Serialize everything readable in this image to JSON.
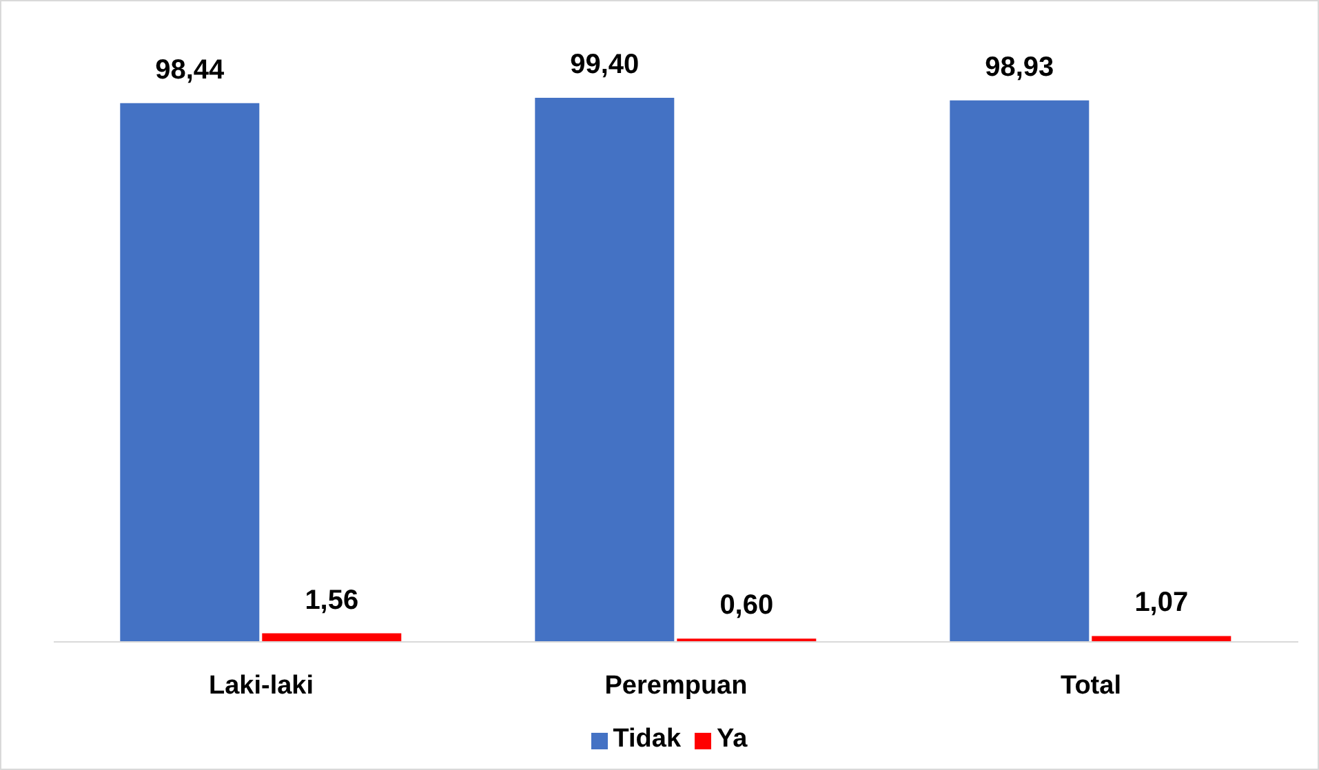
{
  "chart_data": {
    "type": "bar",
    "categories": [
      "Laki-laki",
      "Perempuan",
      "Total"
    ],
    "series": [
      {
        "name": "Tidak",
        "color": "#4472c4",
        "values": [
          98.44,
          99.4,
          98.93
        ],
        "value_labels": [
          "98,44",
          "99,40",
          "98,93"
        ]
      },
      {
        "name": "Ya",
        "color": "#ff0000",
        "values": [
          1.56,
          0.6,
          1.07
        ],
        "value_labels": [
          "1,56",
          "0,60",
          "1,07"
        ]
      }
    ],
    "legend": "bottom",
    "grid": false
  }
}
